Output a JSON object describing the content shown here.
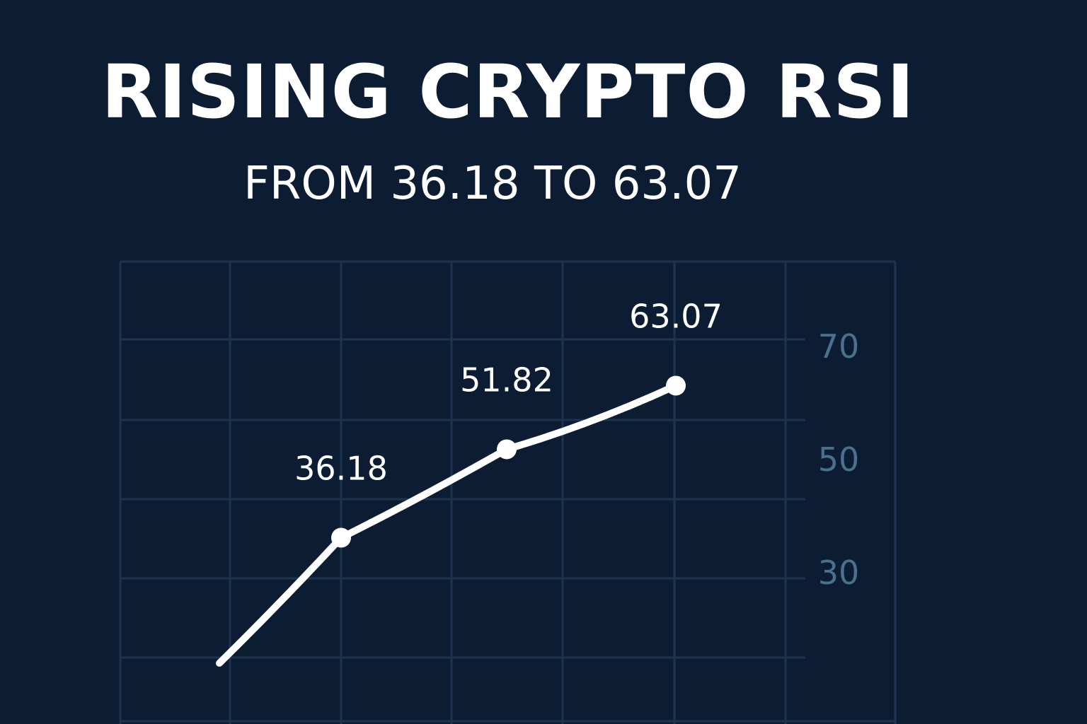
{
  "title": "RISING CRYPTO RSI",
  "subtitle": "FROM 36.18 TO 63.07",
  "chart_data": {
    "type": "line",
    "title": "RISING CRYPTO RSI",
    "subtitle": "FROM 36.18 TO 63.07",
    "xlabel": "",
    "ylabel": "",
    "x": [
      0,
      1,
      2,
      3
    ],
    "series": [
      {
        "values": [
          14,
          36.18,
          51.82,
          63.07
        ]
      }
    ],
    "data_labels": [
      {
        "index": 1,
        "text": "36.18"
      },
      {
        "index": 2,
        "text": "51.82"
      },
      {
        "index": 3,
        "text": "63.07"
      }
    ],
    "y_ticks": [
      30,
      50,
      70
    ],
    "y_tick_labels": [
      "30",
      "50",
      "70"
    ],
    "y_axis_side": "right",
    "ylim": [
      10,
      90
    ],
    "grid": true,
    "colors": {
      "background": "#0c1c33",
      "line": "#ffffff",
      "grid": "#1d3350",
      "tick_label": "#4b6f8f"
    }
  }
}
